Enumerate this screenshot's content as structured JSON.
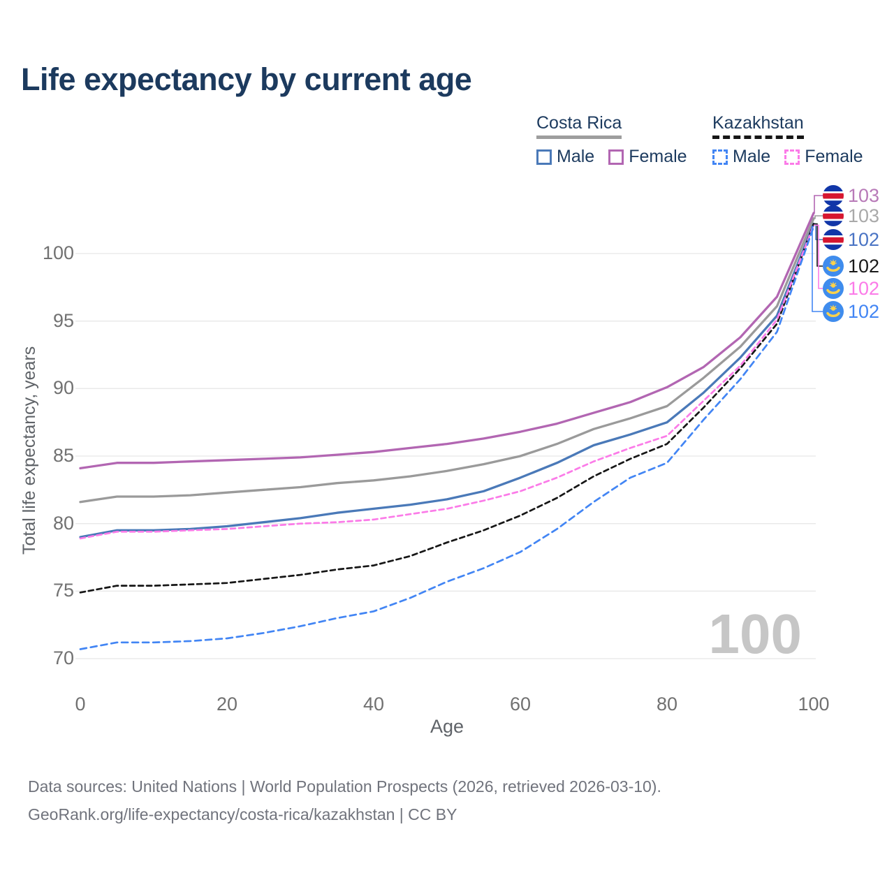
{
  "title": "Life expectancy by current age",
  "legend": {
    "groups": [
      {
        "country": "Costa Rica",
        "underline": "solid",
        "underline_color": "#9e9e9e",
        "items": [
          {
            "label": "Male",
            "color": "#4a79b8",
            "dashed": false
          },
          {
            "label": "Female",
            "color": "#b266b2",
            "dashed": false
          }
        ]
      },
      {
        "country": "Kazakhstan",
        "underline": "dashed",
        "underline_color": "#161616",
        "items": [
          {
            "label": "Male",
            "color": "#4285f4",
            "dashed": true
          },
          {
            "label": "Female",
            "color": "#fb7be8",
            "dashed": true
          }
        ]
      }
    ]
  },
  "axes": {
    "y_title": "Total life expectancy, years",
    "x_title": "Age"
  },
  "hover_value": "100",
  "footer": {
    "line1": "Data sources: United Nations | World Population Prospects (2026, retrieved 2026-03-10).",
    "line2": "GeoRank.org/life-expectancy/costa-rica/kazakhstan | CC BY"
  },
  "chart_data": {
    "type": "line",
    "title": "Life expectancy by current age",
    "xlabel": "Age",
    "ylabel": "Total life expectancy, years",
    "xlim": [
      0,
      100
    ],
    "ylim": [
      70,
      104
    ],
    "grid": true,
    "xticks": [
      0,
      20,
      40,
      60,
      80,
      100
    ],
    "yticks": [
      70,
      75,
      80,
      85,
      90,
      95,
      100
    ],
    "hovered_age": "100",
    "x": [
      0,
      5,
      10,
      15,
      20,
      25,
      30,
      35,
      40,
      45,
      50,
      55,
      60,
      65,
      70,
      75,
      80,
      85,
      90,
      95,
      100
    ],
    "series": [
      {
        "name": "Costa Rica — Both sexes",
        "flag": "costa_rica",
        "color": "#9a9a9a",
        "dashed": false,
        "end_label": "103",
        "end_label_color": "#a9a9a9",
        "values": [
          81.6,
          82.0,
          82.0,
          82.1,
          82.3,
          82.5,
          82.7,
          83.0,
          83.2,
          83.5,
          83.9,
          84.4,
          85.0,
          85.9,
          87.0,
          87.8,
          88.7,
          90.8,
          93.1,
          96.1,
          102.6
        ]
      },
      {
        "name": "Costa Rica — Female",
        "flag": "costa_rica",
        "color": "#b266b2",
        "dashed": false,
        "end_label": "103",
        "end_label_color": "#b87ab8",
        "values": [
          84.1,
          84.5,
          84.5,
          84.6,
          84.7,
          84.8,
          84.9,
          85.1,
          85.3,
          85.6,
          85.9,
          86.3,
          86.8,
          87.4,
          88.2,
          89.0,
          90.1,
          91.6,
          93.8,
          96.8,
          103.0
        ]
      },
      {
        "name": "Costa Rica — Male",
        "flag": "costa_rica",
        "color": "#4a79b8",
        "dashed": false,
        "end_label": "102",
        "end_label_color": "#4a74c4",
        "values": [
          79.0,
          79.5,
          79.5,
          79.6,
          79.8,
          80.1,
          80.4,
          80.8,
          81.1,
          81.4,
          81.8,
          82.4,
          83.4,
          84.5,
          85.8,
          86.6,
          87.5,
          89.7,
          92.3,
          95.4,
          102.2
        ]
      },
      {
        "name": "Kazakhstan — Both sexes",
        "flag": "kazakhstan",
        "color": "#161616",
        "dashed": true,
        "end_label": "102",
        "end_label_color": "#1a1a1a",
        "values": [
          74.9,
          75.4,
          75.4,
          75.5,
          75.6,
          75.9,
          76.2,
          76.6,
          76.9,
          77.6,
          78.6,
          79.5,
          80.6,
          81.9,
          83.5,
          84.8,
          85.9,
          88.6,
          91.5,
          94.8,
          102.2
        ]
      },
      {
        "name": "Kazakhstan — Female",
        "flag": "kazakhstan",
        "color": "#fb7be8",
        "dashed": true,
        "end_label": "102",
        "end_label_color": "#fb7be8",
        "values": [
          78.9,
          79.4,
          79.4,
          79.5,
          79.6,
          79.8,
          80.0,
          80.1,
          80.3,
          80.7,
          81.1,
          81.7,
          82.4,
          83.4,
          84.6,
          85.6,
          86.5,
          89.1,
          91.7,
          95.1,
          102.1
        ]
      },
      {
        "name": "Kazakhstan — Male",
        "flag": "kazakhstan",
        "color": "#4285f4",
        "dashed": true,
        "end_label": "102",
        "end_label_color": "#4285f4",
        "values": [
          70.7,
          71.2,
          71.2,
          71.3,
          71.5,
          71.9,
          72.4,
          73.0,
          73.5,
          74.5,
          75.7,
          76.7,
          77.9,
          79.6,
          81.6,
          83.4,
          84.5,
          87.7,
          90.7,
          94.2,
          102.0
        ]
      }
    ],
    "end_label_rows_order_top_to_bottom": [
      "Costa Rica — Female",
      "Costa Rica — Both sexes",
      "Costa Rica — Male",
      "Kazakhstan — Both sexes",
      "Kazakhstan — Female",
      "Kazakhstan — Male"
    ]
  }
}
